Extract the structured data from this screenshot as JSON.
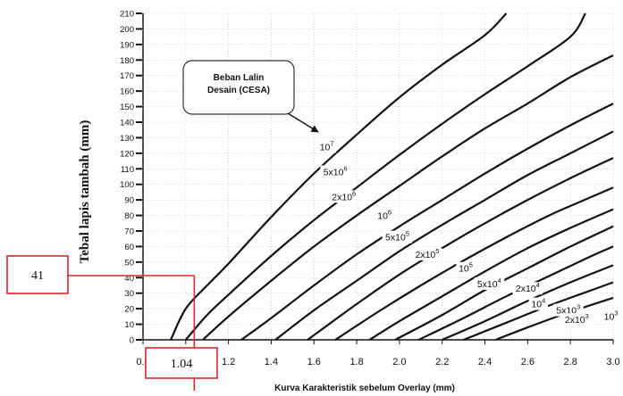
{
  "chart_data": {
    "type": "line",
    "title": "",
    "xlabel": "Kurva Karakteristik sebelum Overlay (mm)",
    "ylabel": "Tebal lapis tambah (mm)",
    "xlim": [
      0.8,
      3.0
    ],
    "ylim": [
      0,
      210
    ],
    "x_ticks": [
      "0.8",
      "1.0",
      "1.2",
      "1.4",
      "1.6",
      "1.8",
      "2.0",
      "2.2",
      "2.4",
      "2.6",
      "2.8",
      "3.0"
    ],
    "y_ticks": [
      "0",
      "10",
      "20",
      "30",
      "40",
      "50",
      "60",
      "70",
      "80",
      "90",
      "100",
      "110",
      "120",
      "130",
      "140",
      "150",
      "160",
      "170",
      "180",
      "190",
      "200",
      "210"
    ],
    "grid": true,
    "series": [
      {
        "name": "10^7",
        "label_base": "10",
        "label_exp": "7",
        "label_at": [
          1.66,
          123
        ],
        "x": [
          0.93,
          1.0,
          1.1,
          1.2,
          1.4,
          1.6,
          1.8,
          2.0,
          2.2,
          2.4,
          2.5
        ],
        "y": [
          0,
          20,
          35,
          49,
          79,
          107,
          132,
          156,
          177,
          196,
          210
        ]
      },
      {
        "name": "5x10^6",
        "label_base": "5x10",
        "label_exp": "6",
        "label_at": [
          1.7,
          107
        ],
        "x": [
          1.0,
          1.1,
          1.2,
          1.4,
          1.6,
          1.8,
          2.0,
          2.2,
          2.4,
          2.6,
          2.8,
          2.87
        ],
        "y": [
          0,
          16,
          29,
          54,
          77,
          98,
          119,
          139,
          158,
          176,
          195,
          210
        ]
      },
      {
        "name": "2x10^6",
        "label_base": "2x10",
        "label_exp": "6",
        "label_at": [
          1.74,
          91
        ],
        "x": [
          1.08,
          1.2,
          1.4,
          1.6,
          1.8,
          2.0,
          2.2,
          2.4,
          2.6,
          2.8,
          3.0
        ],
        "y": [
          0,
          15,
          38,
          60,
          80,
          99,
          118,
          136,
          152,
          169,
          183
        ]
      },
      {
        "name": "10^6",
        "label_base": "10",
        "label_exp": "6",
        "label_at": [
          1.93,
          79
        ],
        "x": [
          1.26,
          1.4,
          1.6,
          1.8,
          2.0,
          2.2,
          2.4,
          2.6,
          2.8,
          3.0
        ],
        "y": [
          0,
          14,
          35,
          55,
          73,
          90,
          107,
          123,
          138,
          152
        ]
      },
      {
        "name": "5x10^5",
        "label_base": "5x10",
        "label_exp": "5",
        "label_at": [
          1.99,
          65
        ],
        "x": [
          1.42,
          1.6,
          1.8,
          2.0,
          2.2,
          2.4,
          2.6,
          2.8,
          3.0
        ],
        "y": [
          0,
          19,
          38,
          57,
          74,
          90,
          106,
          120,
          134
        ]
      },
      {
        "name": "2x10^5",
        "label_base": "2x10",
        "label_exp": "5",
        "label_at": [
          2.13,
          54
        ],
        "x": [
          1.57,
          1.8,
          2.0,
          2.2,
          2.4,
          2.6,
          2.8,
          3.0
        ],
        "y": [
          0,
          23,
          42,
          59,
          75,
          90,
          104,
          117
        ]
      },
      {
        "name": "10^5",
        "label_base": "10",
        "label_exp": "5",
        "label_at": [
          2.31,
          45
        ],
        "x": [
          1.7,
          1.9,
          2.1,
          2.3,
          2.5,
          2.7,
          2.9,
          3.0
        ],
        "y": [
          0,
          18,
          35,
          51,
          66,
          80,
          92,
          98
        ]
      },
      {
        "name": "5x10^4",
        "label_base": "5x10",
        "label_exp": "4",
        "label_at": [
          2.42,
          35
        ],
        "x": [
          1.86,
          2.0,
          2.2,
          2.4,
          2.6,
          2.8,
          3.0
        ],
        "y": [
          0,
          12,
          28,
          44,
          59,
          72,
          84
        ]
      },
      {
        "name": "2x10^4",
        "label_base": "2x10",
        "label_exp": "4",
        "label_at": [
          2.6,
          32
        ],
        "x": [
          1.98,
          2.2,
          2.4,
          2.6,
          2.8,
          3.0
        ],
        "y": [
          0,
          16,
          32,
          46,
          60,
          73
        ]
      },
      {
        "name": "10^4",
        "label_base": "10",
        "label_exp": "4",
        "label_at": [
          2.65,
          22
        ],
        "x": [
          2.09,
          2.3,
          2.5,
          2.7,
          2.9,
          3.0
        ],
        "y": [
          0,
          14,
          28,
          41,
          54,
          60
        ]
      },
      {
        "name": "5x10^3",
        "label_base": "5x10",
        "label_exp": "3",
        "label_at": [
          2.79,
          18
        ],
        "x": [
          2.2,
          2.4,
          2.6,
          2.8,
          3.0
        ],
        "y": [
          0,
          12,
          25,
          37,
          48
        ]
      },
      {
        "name": "2x10^3",
        "label_base": "2x10",
        "label_exp": "3",
        "label_at": [
          2.83,
          12
        ],
        "x": [
          2.3,
          2.5,
          2.7,
          2.9,
          3.0
        ],
        "y": [
          0,
          11,
          22,
          32,
          37
        ]
      },
      {
        "name": "10^3",
        "label_base": "10",
        "label_exp": "3",
        "label_at": [
          2.99,
          14
        ],
        "x": [
          2.45,
          2.6,
          2.8,
          3.0
        ],
        "y": [
          0,
          8,
          18,
          27
        ]
      }
    ],
    "callout": {
      "lines": [
        "Beban Lalin",
        "Desain (CESA)"
      ],
      "points_to_series": "10^7"
    },
    "annotations": {
      "reading_x": 1.04,
      "reading_y": 41,
      "x_box_label": "1.04",
      "y_box_label": "41",
      "line_color": "#d62828"
    }
  }
}
